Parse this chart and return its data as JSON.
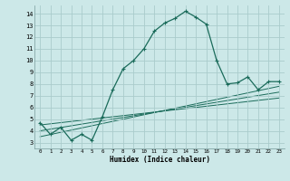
{
  "xlabel": "Humidex (Indice chaleur)",
  "bg_color": "#cce8e8",
  "line_color": "#1a6b5a",
  "grid_color": "#aacccc",
  "xlim": [
    -0.5,
    23.5
  ],
  "ylim": [
    2.5,
    14.7
  ],
  "xticks": [
    0,
    1,
    2,
    3,
    4,
    5,
    6,
    7,
    8,
    9,
    10,
    11,
    12,
    13,
    14,
    15,
    16,
    17,
    18,
    19,
    20,
    21,
    22,
    23
  ],
  "yticks": [
    3,
    4,
    5,
    6,
    7,
    8,
    9,
    10,
    11,
    12,
    13,
    14
  ],
  "main_line": [
    [
      0,
      4.7
    ],
    [
      1,
      3.7
    ],
    [
      2,
      4.3
    ],
    [
      3,
      3.2
    ],
    [
      4,
      3.7
    ],
    [
      5,
      3.2
    ],
    [
      6,
      5.2
    ],
    [
      7,
      7.5
    ],
    [
      8,
      9.3
    ],
    [
      9,
      10.0
    ],
    [
      10,
      11.0
    ],
    [
      11,
      12.5
    ],
    [
      12,
      13.2
    ],
    [
      13,
      13.6
    ],
    [
      14,
      14.2
    ],
    [
      15,
      13.7
    ],
    [
      16,
      13.1
    ],
    [
      17,
      10.0
    ],
    [
      18,
      8.0
    ],
    [
      19,
      8.1
    ],
    [
      20,
      8.6
    ],
    [
      21,
      7.5
    ],
    [
      22,
      8.2
    ],
    [
      23,
      8.2
    ]
  ],
  "linear_line1": [
    [
      0,
      3.5
    ],
    [
      23,
      7.8
    ]
  ],
  "linear_line2": [
    [
      0,
      4.0
    ],
    [
      23,
      7.3
    ]
  ],
  "linear_line3": [
    [
      0,
      4.5
    ],
    [
      23,
      6.8
    ]
  ]
}
